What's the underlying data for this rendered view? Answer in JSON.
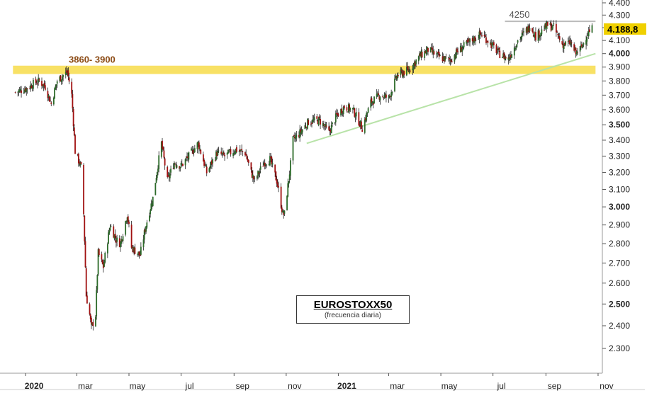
{
  "chart_data": {
    "type": "candlestick",
    "title": "EUROSTOXX50",
    "subtitle": "(frecuencia diaria)",
    "x_labels": [
      {
        "label": "2020",
        "date": "2020-01",
        "bold": true
      },
      {
        "label": "mar",
        "date": "2020-03"
      },
      {
        "label": "may",
        "date": "2020-05"
      },
      {
        "label": "jul",
        "date": "2020-07"
      },
      {
        "label": "sep",
        "date": "2020-09"
      },
      {
        "label": "nov",
        "date": "2020-11"
      },
      {
        "label": "2021",
        "date": "2021-01",
        "bold": true
      },
      {
        "label": "mar",
        "date": "2021-03"
      },
      {
        "label": "may",
        "date": "2021-05"
      },
      {
        "label": "jul",
        "date": "2021-07"
      },
      {
        "label": "sep",
        "date": "2021-09"
      },
      {
        "label": "nov",
        "date": "2021-11"
      }
    ],
    "y_axis": {
      "scale": "log",
      "ticks": [
        "4.400",
        "4.300",
        "4.200",
        "4.100",
        "4.000",
        "3.900",
        "3.800",
        "3.700",
        "3.600",
        "3.500",
        "3.400",
        "3.300",
        "3.200",
        "3.100",
        "3.000",
        "2.900",
        "2.800",
        "2.700",
        "2.600",
        "2.500",
        "2.400",
        "2.300"
      ],
      "bold_ticks": [
        "4.000",
        "3.500",
        "3.000",
        "2.500"
      ],
      "range": [
        2200,
        4400
      ]
    },
    "close_series": [
      {
        "date": "2019-12-20",
        "close": 3720
      },
      {
        "date": "2020-01-03",
        "close": 3750
      },
      {
        "date": "2020-01-10",
        "close": 3780
      },
      {
        "date": "2020-01-17",
        "close": 3800
      },
      {
        "date": "2020-01-24",
        "close": 3760
      },
      {
        "date": "2020-01-31",
        "close": 3640
      },
      {
        "date": "2020-02-07",
        "close": 3800
      },
      {
        "date": "2020-02-14",
        "close": 3840
      },
      {
        "date": "2020-02-19",
        "close": 3865
      },
      {
        "date": "2020-02-24",
        "close": 3700
      },
      {
        "date": "2020-02-28",
        "close": 3330
      },
      {
        "date": "2020-03-06",
        "close": 3230
      },
      {
        "date": "2020-03-09",
        "close": 2960
      },
      {
        "date": "2020-03-12",
        "close": 2540
      },
      {
        "date": "2020-03-16",
        "close": 2450
      },
      {
        "date": "2020-03-18",
        "close": 2390
      },
      {
        "date": "2020-03-23",
        "close": 2450
      },
      {
        "date": "2020-03-26",
        "close": 2750
      },
      {
        "date": "2020-04-01",
        "close": 2680
      },
      {
        "date": "2020-04-09",
        "close": 2900
      },
      {
        "date": "2020-04-16",
        "close": 2820
      },
      {
        "date": "2020-04-21",
        "close": 2800
      },
      {
        "date": "2020-04-29",
        "close": 2960
      },
      {
        "date": "2020-05-04",
        "close": 2780
      },
      {
        "date": "2020-05-14",
        "close": 2740
      },
      {
        "date": "2020-05-21",
        "close": 2900
      },
      {
        "date": "2020-05-29",
        "close": 3050
      },
      {
        "date": "2020-06-08",
        "close": 3380
      },
      {
        "date": "2020-06-15",
        "close": 3150
      },
      {
        "date": "2020-06-23",
        "close": 3260
      },
      {
        "date": "2020-07-01",
        "close": 3240
      },
      {
        "date": "2020-07-10",
        "close": 3300
      },
      {
        "date": "2020-07-21",
        "close": 3380
      },
      {
        "date": "2020-07-31",
        "close": 3200
      },
      {
        "date": "2020-08-12",
        "close": 3320
      },
      {
        "date": "2020-08-21",
        "close": 3300
      },
      {
        "date": "2020-09-03",
        "close": 3340
      },
      {
        "date": "2020-09-14",
        "close": 3320
      },
      {
        "date": "2020-09-21",
        "close": 3200
      },
      {
        "date": "2020-09-25",
        "close": 3150
      },
      {
        "date": "2020-10-06",
        "close": 3260
      },
      {
        "date": "2020-10-13",
        "close": 3280
      },
      {
        "date": "2020-10-21",
        "close": 3150
      },
      {
        "date": "2020-10-28",
        "close": 2960
      },
      {
        "date": "2020-10-30",
        "close": 2960
      },
      {
        "date": "2020-11-05",
        "close": 3200
      },
      {
        "date": "2020-11-09",
        "close": 3400
      },
      {
        "date": "2020-11-16",
        "close": 3440
      },
      {
        "date": "2020-11-27",
        "close": 3520
      },
      {
        "date": "2020-12-10",
        "close": 3530
      },
      {
        "date": "2020-12-21",
        "close": 3450
      },
      {
        "date": "2020-12-30",
        "close": 3560
      },
      {
        "date": "2021-01-08",
        "close": 3620
      },
      {
        "date": "2021-01-18",
        "close": 3600
      },
      {
        "date": "2021-01-29",
        "close": 3480
      },
      {
        "date": "2021-02-08",
        "close": 3650
      },
      {
        "date": "2021-02-19",
        "close": 3700
      },
      {
        "date": "2021-03-01",
        "close": 3680
      },
      {
        "date": "2021-03-11",
        "close": 3840
      },
      {
        "date": "2021-03-18",
        "close": 3860
      },
      {
        "date": "2021-03-25",
        "close": 3880
      },
      {
        "date": "2021-04-06",
        "close": 3980
      },
      {
        "date": "2021-04-16",
        "close": 4030
      },
      {
        "date": "2021-04-30",
        "close": 3970
      },
      {
        "date": "2021-05-12",
        "close": 3950
      },
      {
        "date": "2021-05-21",
        "close": 4020
      },
      {
        "date": "2021-06-04",
        "close": 4090
      },
      {
        "date": "2021-06-17",
        "close": 4150
      },
      {
        "date": "2021-06-25",
        "close": 4100
      },
      {
        "date": "2021-07-08",
        "close": 4000
      },
      {
        "date": "2021-07-19",
        "close": 3960
      },
      {
        "date": "2021-07-30",
        "close": 4100
      },
      {
        "date": "2021-08-12",
        "close": 4200
      },
      {
        "date": "2021-08-13",
        "close": 4230
      },
      {
        "date": "2021-08-20",
        "close": 4130
      },
      {
        "date": "2021-09-03",
        "close": 4220
      },
      {
        "date": "2021-09-10",
        "close": 4200
      },
      {
        "date": "2021-09-20",
        "close": 4070
      },
      {
        "date": "2021-09-30",
        "close": 4080
      },
      {
        "date": "2021-10-06",
        "close": 4000
      },
      {
        "date": "2021-10-13",
        "close": 4050
      },
      {
        "date": "2021-10-19",
        "close": 4150
      },
      {
        "date": "2021-10-25",
        "close": 4190
      }
    ],
    "last_value": {
      "label": "4.188,8",
      "value": 4188.8,
      "color": "#f0d000"
    },
    "resistance_zone": {
      "label": "3860- 3900",
      "from": 3860,
      "to": 3900,
      "start": "2020-02-19",
      "end": "2021-10-29",
      "color": "#f7dc4a"
    },
    "resistance_line": {
      "label": "4250",
      "value": 4250,
      "start": "2021-07-15",
      "end": "2021-10-29",
      "color": "#bbbbbb"
    },
    "trendline": {
      "start": {
        "date": "2020-11-25",
        "value": 3380
      },
      "end": {
        "date": "2021-10-29",
        "value": 4000
      },
      "color": "#b8e3a8"
    },
    "colors": {
      "up": "#2d6b2a",
      "down": "#a01010",
      "wick": "#222222"
    }
  }
}
